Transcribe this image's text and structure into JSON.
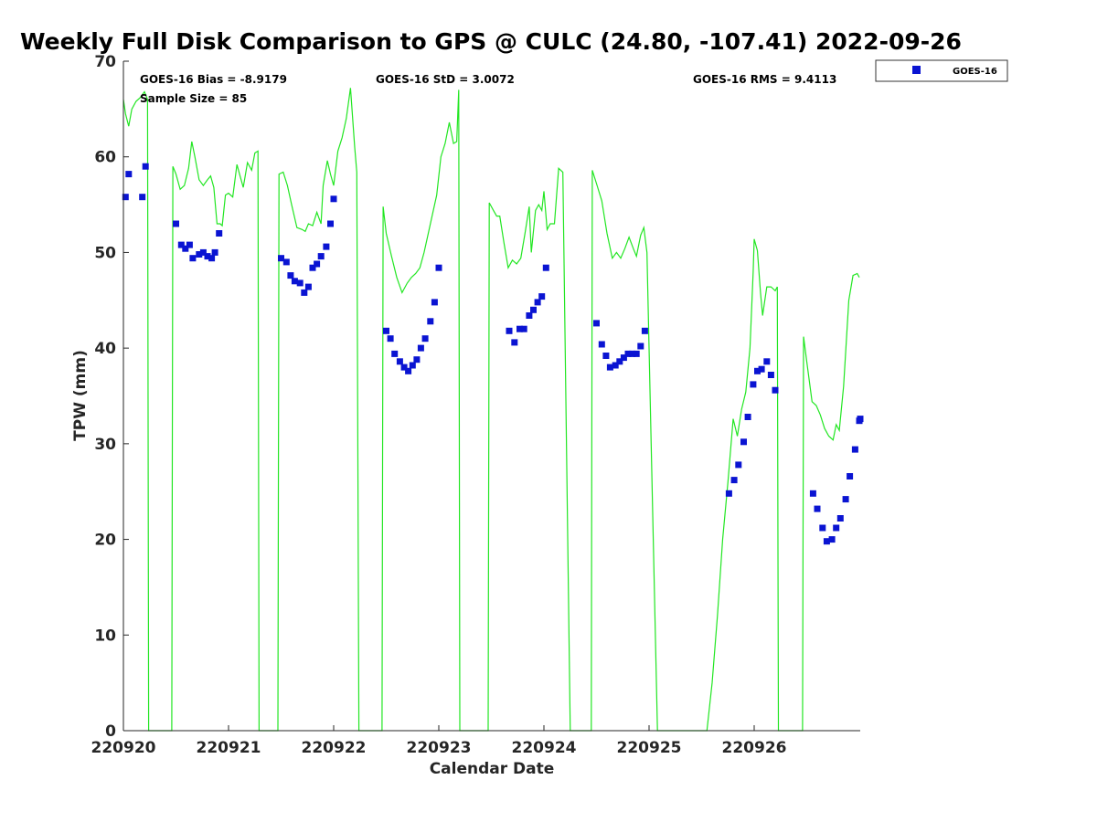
{
  "chart_data": {
    "type": "scatter",
    "title": "Weekly Full Disk Comparison to GPS @ CULC (24.80, -107.41) 2022-09-26",
    "xlabel": "Calendar Date",
    "ylabel": "TPW (mm)",
    "xlim": [
      0,
      7
    ],
    "ylim": [
      0,
      70
    ],
    "x_ticks": [
      {
        "value": 0,
        "label": "220920"
      },
      {
        "value": 1,
        "label": "220921"
      },
      {
        "value": 2,
        "label": "220922"
      },
      {
        "value": 3,
        "label": "220923"
      },
      {
        "value": 4,
        "label": "220924"
      },
      {
        "value": 5,
        "label": "220925"
      },
      {
        "value": 6,
        "label": "220926"
      }
    ],
    "y_ticks": [
      0,
      10,
      20,
      30,
      40,
      50,
      60,
      70
    ],
    "grid": false,
    "legend": {
      "placement": "outside-top-right",
      "entries": [
        "GOES-16"
      ]
    },
    "stats": {
      "bias": "GOES-16 Bias = -8.9179",
      "std": "GOES-16 StD = 3.0072",
      "rms": "GOES-16 RMS = 9.4113",
      "sample": "Sample Size = 85"
    },
    "colors": {
      "goes": "#0a14d2",
      "gps": "#22e622"
    },
    "series": [
      {
        "name": "GOES-16",
        "marker": "square",
        "color": "#0a14d2",
        "points": [
          [
            0.02,
            55.8
          ],
          [
            0.05,
            58.2
          ],
          [
            0.18,
            55.8
          ],
          [
            0.21,
            59.0
          ],
          [
            0.5,
            53.0
          ],
          [
            0.55,
            50.8
          ],
          [
            0.59,
            50.4
          ],
          [
            0.63,
            50.8
          ],
          [
            0.66,
            49.4
          ],
          [
            0.72,
            49.8
          ],
          [
            0.76,
            50.0
          ],
          [
            0.8,
            49.6
          ],
          [
            0.84,
            49.4
          ],
          [
            0.87,
            50.0
          ],
          [
            0.91,
            52.0
          ],
          [
            1.5,
            49.4
          ],
          [
            1.55,
            49.0
          ],
          [
            1.59,
            47.6
          ],
          [
            1.63,
            47.0
          ],
          [
            1.68,
            46.8
          ],
          [
            1.72,
            45.8
          ],
          [
            1.76,
            46.4
          ],
          [
            1.8,
            48.4
          ],
          [
            1.84,
            48.8
          ],
          [
            1.88,
            49.6
          ],
          [
            1.93,
            50.6
          ],
          [
            1.97,
            53.0
          ],
          [
            2.0,
            55.6
          ],
          [
            2.5,
            41.8
          ],
          [
            2.54,
            41.0
          ],
          [
            2.58,
            39.4
          ],
          [
            2.63,
            38.6
          ],
          [
            2.67,
            38.0
          ],
          [
            2.71,
            37.6
          ],
          [
            2.75,
            38.2
          ],
          [
            2.79,
            38.8
          ],
          [
            2.83,
            40.0
          ],
          [
            2.87,
            41.0
          ],
          [
            2.92,
            42.8
          ],
          [
            2.96,
            44.8
          ],
          [
            3.0,
            48.4
          ],
          [
            3.67,
            41.8
          ],
          [
            3.72,
            40.6
          ],
          [
            3.77,
            42.0
          ],
          [
            3.81,
            42.0
          ],
          [
            3.86,
            43.4
          ],
          [
            3.9,
            44.0
          ],
          [
            3.94,
            44.8
          ],
          [
            3.98,
            45.4
          ],
          [
            4.02,
            48.4
          ],
          [
            4.5,
            42.6
          ],
          [
            4.55,
            40.4
          ],
          [
            4.59,
            39.2
          ],
          [
            4.63,
            38.0
          ],
          [
            4.68,
            38.2
          ],
          [
            4.72,
            38.6
          ],
          [
            4.76,
            39.0
          ],
          [
            4.8,
            39.4
          ],
          [
            4.84,
            39.4
          ],
          [
            4.88,
            39.4
          ],
          [
            4.92,
            40.2
          ],
          [
            4.96,
            41.8
          ],
          [
            5.76,
            24.8
          ],
          [
            5.81,
            26.2
          ],
          [
            5.85,
            27.8
          ],
          [
            5.9,
            30.2
          ],
          [
            5.94,
            32.8
          ],
          [
            5.99,
            36.2
          ],
          [
            6.03,
            37.6
          ],
          [
            6.07,
            37.8
          ],
          [
            6.12,
            38.6
          ],
          [
            6.16,
            37.2
          ],
          [
            6.2,
            35.6
          ],
          [
            6.56,
            24.8
          ],
          [
            6.6,
            23.2
          ],
          [
            6.65,
            21.2
          ],
          [
            6.69,
            19.8
          ],
          [
            6.74,
            20.0
          ],
          [
            6.78,
            21.2
          ],
          [
            6.82,
            22.2
          ],
          [
            6.87,
            24.2
          ],
          [
            6.91,
            26.6
          ],
          [
            6.96,
            29.4
          ],
          [
            7.0,
            32.4
          ],
          [
            7.02,
            32.6
          ]
        ]
      },
      {
        "name": "GPS",
        "color": "#22e622",
        "points": [
          [
            0.0,
            66.0
          ],
          [
            0.02,
            64.5
          ],
          [
            0.05,
            63.2
          ],
          [
            0.08,
            65.0
          ],
          [
            0.12,
            65.8
          ],
          [
            0.16,
            66.2
          ],
          [
            0.2,
            66.8
          ],
          [
            0.23,
            66.0
          ],
          [
            0.24,
            0.0
          ],
          [
            0.46,
            0.0
          ],
          [
            0.47,
            59.0
          ],
          [
            0.5,
            58.2
          ],
          [
            0.54,
            56.6
          ],
          [
            0.58,
            57.0
          ],
          [
            0.62,
            58.8
          ],
          [
            0.65,
            61.6
          ],
          [
            0.68,
            60.0
          ],
          [
            0.72,
            57.6
          ],
          [
            0.76,
            57.0
          ],
          [
            0.8,
            57.6
          ],
          [
            0.83,
            58.0
          ],
          [
            0.86,
            56.8
          ],
          [
            0.89,
            53.0
          ],
          [
            0.92,
            53.0
          ],
          [
            0.94,
            52.8
          ],
          [
            0.97,
            56.0
          ],
          [
            1.0,
            56.2
          ],
          [
            1.04,
            55.8
          ],
          [
            1.08,
            59.2
          ],
          [
            1.11,
            58.0
          ],
          [
            1.14,
            56.8
          ],
          [
            1.18,
            59.4
          ],
          [
            1.22,
            58.6
          ],
          [
            1.25,
            60.4
          ],
          [
            1.28,
            60.6
          ],
          [
            1.29,
            0.0
          ],
          [
            1.47,
            0.0
          ],
          [
            1.48,
            58.2
          ],
          [
            1.52,
            58.4
          ],
          [
            1.56,
            57.0
          ],
          [
            1.6,
            55.0
          ],
          [
            1.65,
            52.6
          ],
          [
            1.7,
            52.4
          ],
          [
            1.73,
            52.2
          ],
          [
            1.76,
            53.0
          ],
          [
            1.8,
            52.8
          ],
          [
            1.84,
            54.2
          ],
          [
            1.88,
            53.0
          ],
          [
            1.9,
            57.0
          ],
          [
            1.94,
            59.6
          ],
          [
            1.97,
            58.2
          ],
          [
            2.0,
            57.0
          ],
          [
            2.04,
            60.6
          ],
          [
            2.08,
            62.0
          ],
          [
            2.12,
            64.0
          ],
          [
            2.16,
            67.2
          ],
          [
            2.2,
            61.0
          ],
          [
            2.22,
            58.4
          ],
          [
            2.24,
            0.0
          ],
          [
            2.46,
            0.0
          ],
          [
            2.47,
            54.8
          ],
          [
            2.5,
            52.0
          ],
          [
            2.55,
            49.6
          ],
          [
            2.6,
            47.4
          ],
          [
            2.65,
            45.8
          ],
          [
            2.7,
            46.8
          ],
          [
            2.74,
            47.4
          ],
          [
            2.78,
            47.8
          ],
          [
            2.82,
            48.4
          ],
          [
            2.86,
            50.0
          ],
          [
            2.9,
            52.0
          ],
          [
            2.94,
            54.0
          ],
          [
            2.98,
            56.0
          ],
          [
            3.02,
            60.0
          ],
          [
            3.06,
            61.4
          ],
          [
            3.1,
            63.6
          ],
          [
            3.14,
            61.4
          ],
          [
            3.17,
            61.6
          ],
          [
            3.19,
            67.0
          ],
          [
            3.2,
            0.0
          ],
          [
            3.47,
            0.0
          ],
          [
            3.48,
            55.2
          ],
          [
            3.52,
            54.4
          ],
          [
            3.55,
            53.8
          ],
          [
            3.58,
            53.8
          ],
          [
            3.62,
            51.0
          ],
          [
            3.66,
            48.4
          ],
          [
            3.7,
            49.2
          ],
          [
            3.74,
            48.8
          ],
          [
            3.78,
            49.4
          ],
          [
            3.82,
            52.0
          ],
          [
            3.86,
            54.8
          ],
          [
            3.88,
            50.0
          ],
          [
            3.92,
            54.4
          ],
          [
            3.95,
            55.0
          ],
          [
            3.98,
            54.4
          ],
          [
            4.0,
            56.4
          ],
          [
            4.03,
            52.4
          ],
          [
            4.06,
            53.0
          ],
          [
            4.1,
            53.0
          ],
          [
            4.14,
            58.8
          ],
          [
            4.18,
            58.4
          ],
          [
            4.25,
            0.0
          ],
          [
            4.45,
            0.0
          ],
          [
            4.46,
            58.6
          ],
          [
            4.5,
            57.2
          ],
          [
            4.55,
            55.4
          ],
          [
            4.6,
            52.0
          ],
          [
            4.65,
            49.4
          ],
          [
            4.69,
            50.0
          ],
          [
            4.73,
            49.4
          ],
          [
            4.77,
            50.4
          ],
          [
            4.81,
            51.6
          ],
          [
            4.85,
            50.4
          ],
          [
            4.88,
            49.6
          ],
          [
            4.92,
            51.8
          ],
          [
            4.95,
            52.6
          ],
          [
            4.98,
            50.0
          ],
          [
            5.02,
            30.0
          ],
          [
            5.08,
            0.0
          ],
          [
            5.55,
            0.0
          ],
          [
            5.6,
            5.0
          ],
          [
            5.65,
            12.0
          ],
          [
            5.7,
            20.0
          ],
          [
            5.75,
            26.0
          ],
          [
            5.8,
            32.6
          ],
          [
            5.84,
            30.8
          ],
          [
            5.88,
            33.6
          ],
          [
            5.92,
            35.4
          ],
          [
            5.96,
            40.0
          ],
          [
            5.99,
            48.0
          ],
          [
            6.0,
            51.4
          ],
          [
            6.03,
            50.2
          ],
          [
            6.06,
            45.8
          ],
          [
            6.08,
            43.4
          ],
          [
            6.12,
            46.4
          ],
          [
            6.16,
            46.4
          ],
          [
            6.2,
            46.0
          ],
          [
            6.22,
            46.4
          ],
          [
            6.23,
            0.0
          ],
          [
            6.46,
            0.0
          ],
          [
            6.47,
            41.2
          ],
          [
            6.5,
            38.6
          ],
          [
            6.55,
            34.4
          ],
          [
            6.59,
            34.0
          ],
          [
            6.63,
            33.0
          ],
          [
            6.67,
            31.6
          ],
          [
            6.71,
            30.8
          ],
          [
            6.75,
            30.4
          ],
          [
            6.78,
            32.0
          ],
          [
            6.81,
            31.4
          ],
          [
            6.85,
            36.0
          ],
          [
            6.9,
            45.0
          ],
          [
            6.94,
            47.6
          ],
          [
            6.98,
            47.8
          ],
          [
            7.0,
            47.4
          ]
        ]
      }
    ]
  }
}
